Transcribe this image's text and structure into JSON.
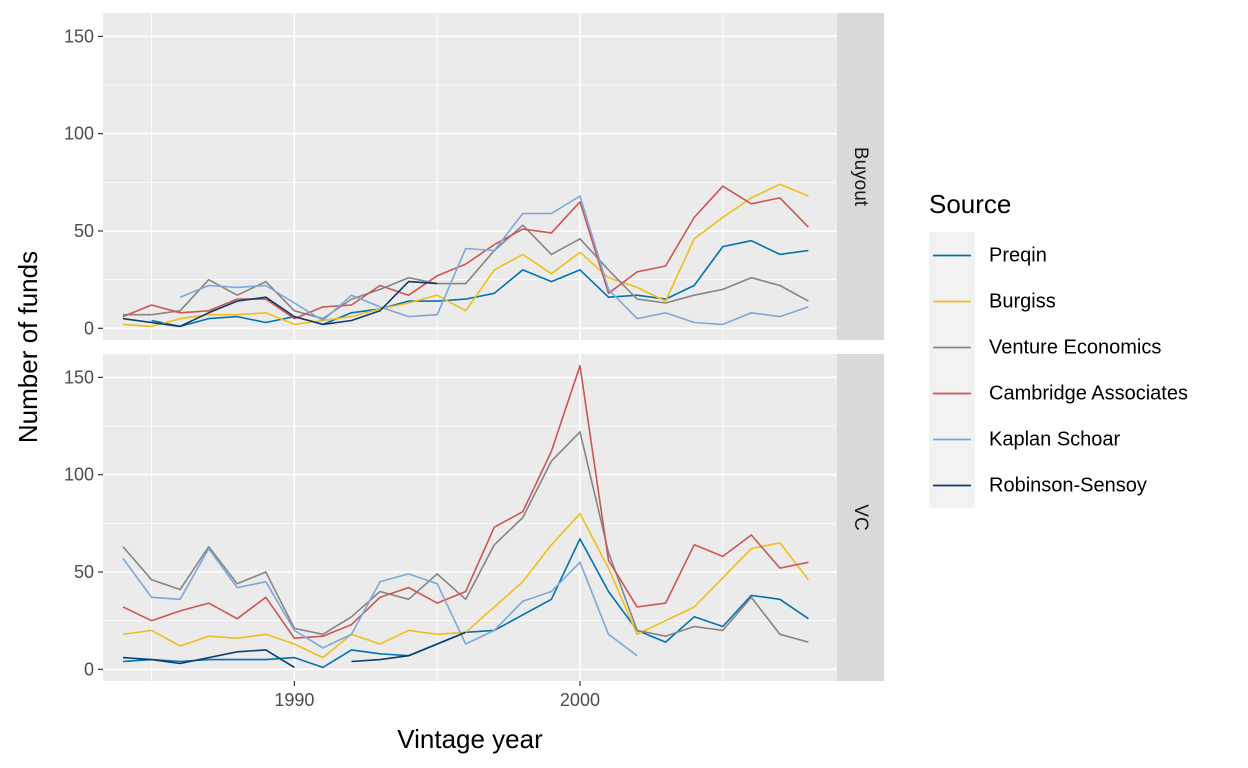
{
  "chart_data": {
    "type": "line",
    "xlabel": "Vintage year",
    "ylabel": "Number of funds",
    "xlim": [
      1983.3,
      2009.0
    ],
    "ylim": [
      -6,
      162
    ],
    "x_ticks": [
      1990,
      2000
    ],
    "y_ticks": [
      0,
      50,
      100,
      150
    ],
    "grid": true,
    "legend": {
      "title": "Source",
      "placement": "right",
      "entries": [
        "Preqin",
        "Burgiss",
        "Venture Economics",
        "Cambridge Associates",
        "Kaplan Schoar",
        "Robinson-Sensoy"
      ]
    },
    "colors": {
      "Preqin": "#0072B2",
      "Burgiss": "#F0BE1A",
      "Venture Economics": "#858585",
      "Cambridge Associates": "#CD5552",
      "Kaplan Schoar": "#7DA7D9",
      "Robinson-Sensoy": "#0B3D6B"
    },
    "facets": [
      {
        "label": "Buyout",
        "series": [
          {
            "name": "Preqin",
            "x": [
              1985,
              1986,
              1987,
              1988,
              1989,
              1990,
              1991,
              1992,
              1993,
              1994,
              1995,
              1996,
              1997,
              1998,
              1999,
              2000,
              2001,
              2002,
              2003,
              2004,
              2005,
              2006,
              2007,
              2008
            ],
            "values": [
              4,
              1,
              5,
              6,
              3,
              6,
              2,
              8,
              10,
              14,
              14,
              15,
              18,
              30,
              24,
              30,
              16,
              17,
              15,
              22,
              42,
              45,
              38,
              40
            ]
          },
          {
            "name": "Burgiss",
            "x": [
              1984,
              1985,
              1986,
              1987,
              1988,
              1989,
              1990,
              1991,
              1992,
              1993,
              1994,
              1995,
              1996,
              1997,
              1998,
              1999,
              2000,
              2001,
              2002,
              2003,
              2004,
              2005,
              2006,
              2007,
              2008
            ],
            "values": [
              2,
              1,
              5,
              7,
              7,
              8,
              2,
              4,
              6,
              10,
              13,
              17,
              9,
              30,
              38,
              28,
              39,
              26,
              21,
              14,
              46,
              57,
              67,
              74,
              68
            ]
          },
          {
            "name": "Venture Economics",
            "x": [
              1984,
              1985,
              1986,
              1987,
              1988,
              1989,
              1990,
              1991,
              1992,
              1993,
              1994,
              1995,
              1996,
              1997,
              1998,
              1999,
              2000,
              2001,
              2002,
              2003,
              2004,
              2005,
              2006,
              2007,
              2008
            ],
            "values": [
              7,
              7,
              9,
              25,
              17,
              24,
              9,
              5,
              15,
              20,
              26,
              23,
              23,
              40,
              53,
              38,
              46,
              30,
              15,
              13,
              17,
              20,
              26,
              22,
              14
            ]
          },
          {
            "name": "Cambridge Associates",
            "x": [
              1984,
              1985,
              1986,
              1987,
              1988,
              1989,
              1990,
              1991,
              1992,
              1993,
              1994,
              1995,
              1996,
              1997,
              1998,
              1999,
              2000,
              2001,
              2002,
              2003,
              2004,
              2005,
              2006,
              2007,
              2008
            ],
            "values": [
              6,
              12,
              8,
              9,
              15,
              15,
              5,
              11,
              12,
              22,
              17,
              27,
              33,
              43,
              51,
              49,
              65,
              18,
              29,
              32,
              57,
              73,
              64,
              67,
              52
            ]
          },
          {
            "name": "Kaplan Schoar",
            "x": [
              1986,
              1987,
              1988,
              1989,
              1990,
              1991,
              1992,
              1993,
              1994,
              1995,
              1996,
              1997,
              1998,
              1999,
              2000,
              2001,
              2002,
              2003,
              2004,
              2005,
              2006,
              2007,
              2008
            ],
            "values": [
              16,
              22,
              21,
              22,
              13,
              4,
              17,
              11,
              6,
              7,
              41,
              40,
              59,
              59,
              68,
              20,
              5,
              8,
              3,
              2,
              8,
              6,
              11
            ]
          },
          {
            "name": "Robinson-Sensoy",
            "x": [
              1984,
              1985,
              1986,
              1987,
              1988,
              1989,
              1990,
              1991,
              1992,
              1993,
              1994,
              1995
            ],
            "values": [
              5,
              3,
              1,
              8,
              14,
              16,
              6,
              2,
              4,
              9,
              24,
              23
            ]
          }
        ]
      },
      {
        "label": "VC",
        "series": [
          {
            "name": "Preqin",
            "x": [
              1984,
              1985,
              1986,
              1987,
              1988,
              1989,
              1990,
              1991,
              1992,
              1993,
              1994,
              1995,
              1996,
              1997,
              1998,
              1999,
              2000,
              2001,
              2002,
              2003,
              2004,
              2005,
              2006,
              2007,
              2008
            ],
            "values": [
              4,
              5,
              4,
              5,
              5,
              5,
              6,
              1,
              10,
              8,
              7,
              13,
              19,
              20,
              28,
              36,
              67,
              40,
              20,
              14,
              27,
              22,
              38,
              36,
              26
            ]
          },
          {
            "name": "Burgiss",
            "x": [
              1984,
              1985,
              1986,
              1987,
              1988,
              1989,
              1990,
              1991,
              1992,
              1993,
              1994,
              1995,
              1996,
              1997,
              1998,
              1999,
              2000,
              2001,
              2002,
              2003,
              2004,
              2005,
              2006,
              2007,
              2008
            ],
            "values": [
              18,
              20,
              12,
              17,
              16,
              18,
              13,
              6,
              18,
              13,
              20,
              18,
              19,
              32,
              45,
              64,
              80,
              52,
              18,
              25,
              32,
              47,
              62,
              65,
              46
            ]
          },
          {
            "name": "Venture Economics",
            "x": [
              1984,
              1985,
              1986,
              1987,
              1988,
              1989,
              1990,
              1991,
              1992,
              1993,
              1994,
              1995,
              1996,
              1997,
              1998,
              1999,
              2000,
              2001,
              2002,
              2003,
              2004,
              2005,
              2006,
              2007,
              2008
            ],
            "values": [
              63,
              46,
              41,
              63,
              44,
              50,
              21,
              18,
              27,
              40,
              36,
              49,
              36,
              64,
              78,
              107,
              122,
              60,
              20,
              17,
              22,
              20,
              37,
              18,
              14
            ]
          },
          {
            "name": "Cambridge Associates",
            "x": [
              1984,
              1985,
              1986,
              1987,
              1988,
              1989,
              1990,
              1991,
              1992,
              1993,
              1994,
              1995,
              1996,
              1997,
              1998,
              1999,
              2000,
              2001,
              2002,
              2003,
              2004,
              2005,
              2006,
              2007,
              2008
            ],
            "values": [
              32,
              25,
              30,
              34,
              26,
              37,
              16,
              17,
              23,
              37,
              42,
              34,
              40,
              73,
              81,
              112,
              156,
              56,
              32,
              34,
              64,
              58,
              69,
              52,
              55
            ]
          },
          {
            "name": "Kaplan Schoar",
            "x": [
              1984,
              1985,
              1986,
              1987,
              1988,
              1989,
              1990,
              1991,
              1992,
              1993,
              1994,
              1995,
              1996,
              1997,
              1998,
              1999,
              2000,
              2001,
              2002
            ],
            "values": [
              57,
              37,
              36,
              62,
              42,
              45,
              20,
              11,
              18,
              45,
              49,
              44,
              13,
              20,
              35,
              40,
              55,
              18,
              7
            ]
          },
          {
            "name": "Robinson-Sensoy",
            "x": [
              1984,
              1985,
              1986,
              1987,
              1988,
              1989,
              1990
            ],
            "values": [
              6,
              5,
              3,
              6,
              9,
              10,
              1
            ]
          },
          {
            "name": "Robinson-Sensoy",
            "x": [
              1992,
              1993,
              1994,
              1995,
              1996
            ],
            "values": [
              4,
              5,
              7,
              13,
              19
            ]
          }
        ]
      }
    ]
  }
}
